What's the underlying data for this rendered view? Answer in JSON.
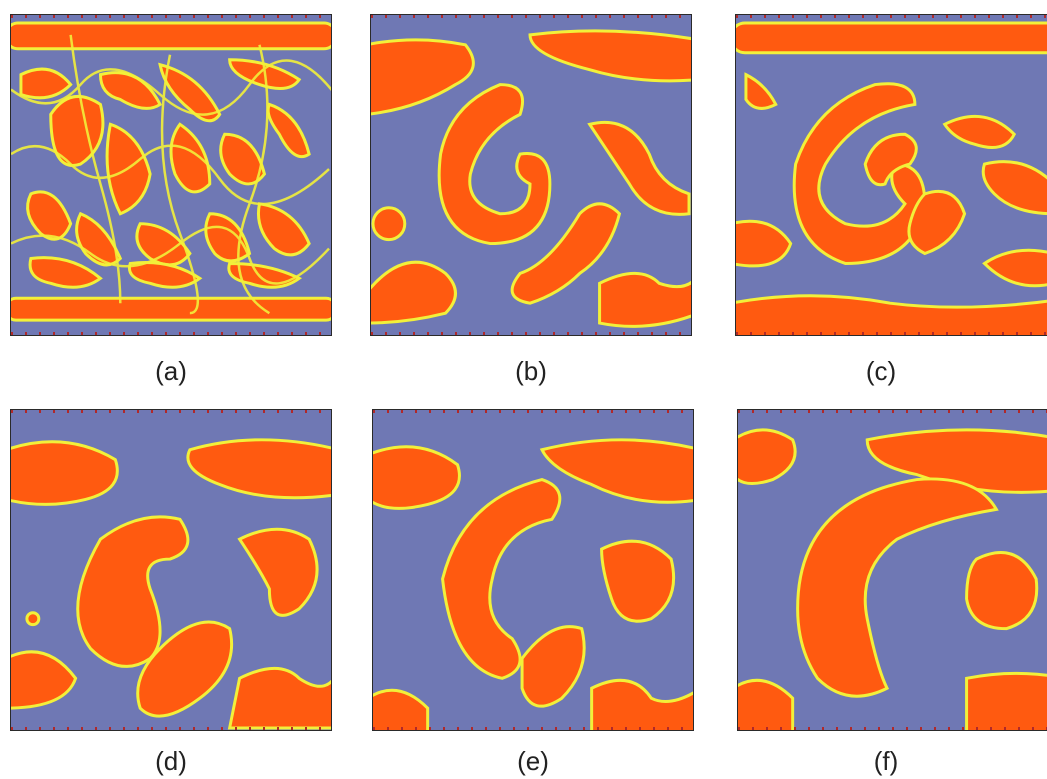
{
  "colors": {
    "background_phase": "#6f78b4",
    "domain_phase": "#ff5a10",
    "interface": "#f2f03a"
  },
  "panels": [
    {
      "id": "a",
      "caption": "(a)"
    },
    {
      "id": "b",
      "caption": "(b)"
    },
    {
      "id": "c",
      "caption": "(c)"
    },
    {
      "id": "d",
      "caption": "(d)"
    },
    {
      "id": "e",
      "caption": "(e)"
    },
    {
      "id": "f",
      "caption": "(f)"
    }
  ]
}
